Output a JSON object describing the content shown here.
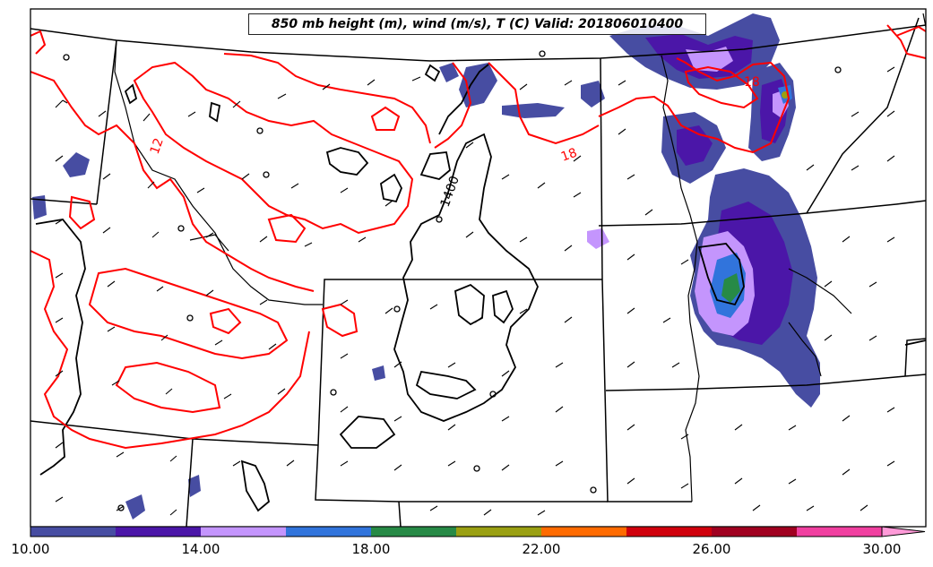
{
  "map": {
    "title": "850 mb height (m), wind (m/s), T (C) Valid: 201806010400"
  },
  "contour_labels": {
    "temp_12": "12",
    "temp_18_east": "18",
    "temp_18_ne": "18",
    "height_1400": "1400"
  },
  "colorbar": {
    "ticks": [
      "10.00",
      "14.00",
      "18.00",
      "22.00",
      "26.00",
      "30.00"
    ],
    "colors": [
      "#474da2",
      "#4b16a8",
      "#c495fd",
      "#3174dc",
      "#278a46",
      "#9aa012",
      "#ff6b00",
      "#d0000c",
      "#a00020",
      "#f040a0",
      "#ff9ad8"
    ]
  }
}
